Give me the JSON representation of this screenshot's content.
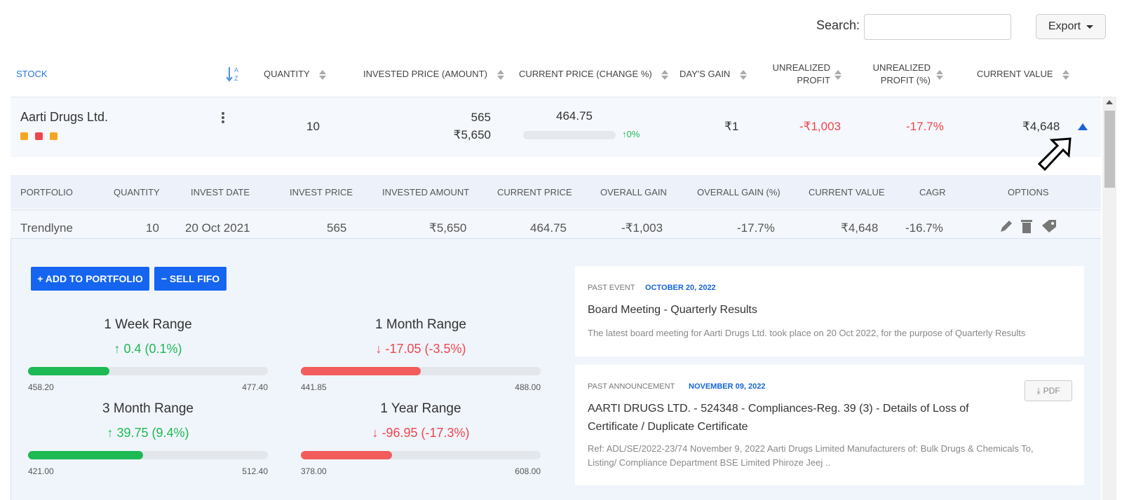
{
  "toolbar": {
    "search_label": "Search:",
    "search_value": "",
    "export_label": "Export",
    "export_icon": "caret-down-icon"
  },
  "columns": {
    "stock": "STOCK",
    "quantity": "QUANTITY",
    "invested": "INVESTED PRICE (AMOUNT)",
    "current": "CURRENT PRICE (CHANGE %)",
    "days_gain": "DAY'S GAIN",
    "unrealized_1": "UNREALIZED",
    "unrealized_2": "PROFIT",
    "unrealized_pct_1": "UNREALIZED",
    "unrealized_pct_2": "PROFIT (%)",
    "current_value": "CURRENT VALUE",
    "az_top": "A",
    "az_bottom": "Z"
  },
  "stock": {
    "name": "Aarti Drugs Ltd.",
    "tag_colors": [
      "#f5a623",
      "#f0454c",
      "#f5a623"
    ],
    "quantity": "10",
    "invested_price": "565",
    "invested_amount": "₹5,650",
    "current_price": "464.75",
    "change_pct": "0%",
    "days_gain": "₹1",
    "unrealized_profit": "-₹1,003",
    "unrealized_profit_pct": "-17.7%",
    "current_value": "₹4,648"
  },
  "portfolio_columns": {
    "portfolio": "PORTFOLIO",
    "quantity": "QUANTITY",
    "invest_date": "INVEST DATE",
    "invest_price": "INVEST PRICE",
    "invested_amount": "INVESTED AMOUNT",
    "current_price": "CURRENT PRICE",
    "overall_gain": "OVERALL GAIN",
    "overall_gain_pct": "OVERALL GAIN (%)",
    "current_value": "CURRENT VALUE",
    "cagr": "CAGR",
    "options": "OPTIONS"
  },
  "portfolio_row": {
    "portfolio": "Trendlyne",
    "quantity": "10",
    "invest_date": "20 Oct 2021",
    "invest_price": "565",
    "invested_amount": "₹5,650",
    "current_price": "464.75",
    "overall_gain": "-₹1,003",
    "overall_gain_pct": "-17.7%",
    "current_value": "₹4,648",
    "cagr": "-16.7%"
  },
  "actions": {
    "add_to_portfolio": "+ ADD TO PORTFOLIO",
    "sell_fifo": "− SELL FIFO"
  },
  "ranges": {
    "week": {
      "title": "1 Week Range",
      "change": "0.4 (0.1%)",
      "low": "458.20",
      "high": "477.40",
      "fill": 0.34,
      "direction": "up"
    },
    "month": {
      "title": "1 Month Range",
      "change": "-17.05 (-3.5%)",
      "low": "441.85",
      "high": "488.00",
      "fill": 0.5,
      "direction": "down"
    },
    "three_month": {
      "title": "3 Month Range",
      "change": "39.75 (9.4%)",
      "low": "421.00",
      "high": "512.40",
      "fill": 0.48,
      "direction": "up"
    },
    "year": {
      "title": "1 Year Range",
      "change": "-96.95 (-17.3%)",
      "low": "378.00",
      "high": "608.00",
      "fill": 0.38,
      "direction": "down"
    }
  },
  "events": [
    {
      "type": "PAST EVENT",
      "date": "OCTOBER 20, 2022",
      "title": "Board Meeting - Quarterly Results",
      "desc": "The latest board meeting for Aarti Drugs Ltd. took place on 20 Oct 2022, for the purpose of Quarterly Results"
    },
    {
      "type": "PAST ANNOUNCEMENT",
      "date": "NOVEMBER 09, 2022",
      "title_line1": "AARTI DRUGS LTD. - 524348 - Compliances-Reg. 39 (3) - Details of Loss of",
      "title_line2": "Certificate / Duplicate Certificate",
      "desc_line1": "Ref: ADL/SE/2022-23/74 November 9, 2022 Aarti Drugs Limited Manufacturers of: Bulk Drugs & Chemicals To,",
      "desc_line2": "Listing/ Compliance Department BSE Limited Phiroze Jeej ..",
      "pdf_label": "PDF"
    }
  ]
}
